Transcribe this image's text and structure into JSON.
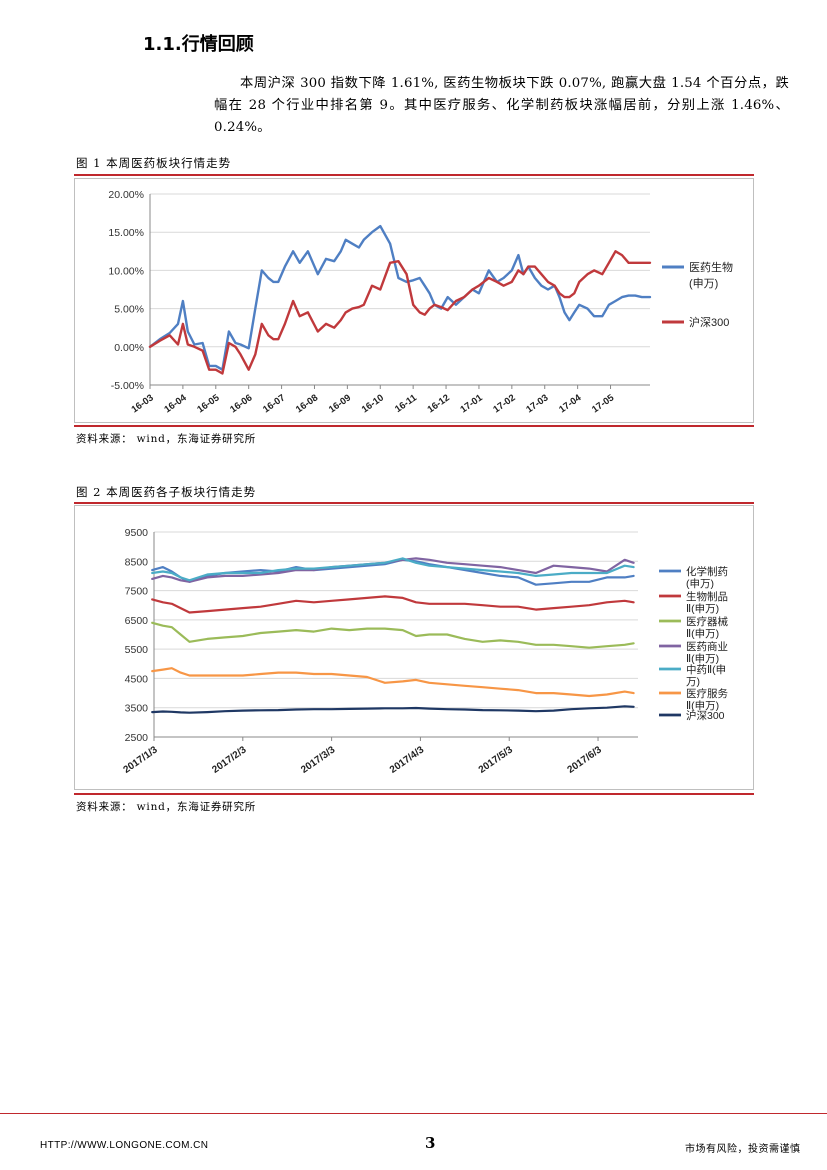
{
  "section_title": "1.1.行情回顾",
  "paragraph": "本周沪深 300 指数下降 1.61%, 医药生物板块下跌 0.07%, 跑赢大盘 1.54 个百分点，跌幅在 28 个行业中排名第 9。其中医疗服务、化学制药板块涨幅居前，分别上涨 1.46%、0.24%。",
  "figure1": {
    "caption": "图 1 本周医药板块行情走势",
    "source": "资料来源：  wind，东海证券研究所"
  },
  "figure2": {
    "caption": "图 2 本周医药各子板块行情走势",
    "source": "资料来源：  wind，东海证券研究所"
  },
  "footer": {
    "url": "HTTP://WWW.LONGONE.COM.CN",
    "page": "3",
    "disclaimer": "市场有风险，投资需谨慎"
  },
  "chart_data": [
    {
      "type": "line",
      "title": "",
      "ylim": [
        -5,
        20
      ],
      "yticks": [
        "-5.00%",
        "0.00%",
        "5.00%",
        "10.00%",
        "15.00%",
        "20.00%"
      ],
      "categories": [
        "16-03",
        "16-04",
        "16-05",
        "16-06",
        "16-07",
        "16-08",
        "16-09",
        "16-10",
        "16-11",
        "16-12",
        "17-01",
        "17-02",
        "17-03",
        "17-04",
        "17-05"
      ],
      "series": [
        {
          "name": "医药生物(申万)",
          "label_lines": [
            "医药生物",
            "(申万)"
          ],
          "color": "#4f7fc3",
          "x": [
            0,
            0.3,
            0.6,
            0.85,
            1.0,
            1.15,
            1.35,
            1.6,
            1.8,
            2.0,
            2.2,
            2.4,
            2.6,
            2.75,
            3.0,
            3.2,
            3.4,
            3.6,
            3.75,
            3.9,
            4.1,
            4.35,
            4.55,
            4.8,
            5.1,
            5.35,
            5.6,
            5.8,
            5.95,
            6.15,
            6.35,
            6.5,
            6.75,
            7.0,
            7.3,
            7.55,
            7.8,
            8.0,
            8.2,
            8.35,
            8.5,
            8.65,
            8.85,
            9.05,
            9.3,
            9.55,
            9.8,
            10.0,
            10.3,
            10.55,
            10.75,
            11.0,
            11.2,
            11.35,
            11.5,
            11.7,
            11.9,
            12.1,
            12.3,
            12.45,
            12.6,
            12.75,
            12.9,
            13.05,
            13.3,
            13.5,
            13.75,
            13.95,
            14.15,
            14.35,
            14.55,
            14.75,
            14.95,
            15.2
          ],
          "values": [
            0.0,
            1.0,
            1.8,
            3.0,
            6.0,
            2.0,
            0.3,
            0.5,
            -2.5,
            -2.5,
            -3.0,
            2.0,
            0.5,
            0.3,
            -0.2,
            5.0,
            10.0,
            9.0,
            8.5,
            8.5,
            10.5,
            12.5,
            11.0,
            12.5,
            9.5,
            11.5,
            11.2,
            12.5,
            14.0,
            13.5,
            13.0,
            14.0,
            15.0,
            15.8,
            13.5,
            9.0,
            8.5,
            8.7,
            9.0,
            8.0,
            7.0,
            5.5,
            5.0,
            6.5,
            5.5,
            6.5,
            7.5,
            7.0,
            10.0,
            8.5,
            9.0,
            10.0,
            12.0,
            9.5,
            10.5,
            9.0,
            8.0,
            7.5,
            8.0,
            6.5,
            4.5,
            3.5,
            4.5,
            5.5,
            5.0,
            4.0,
            4.0,
            5.5,
            6.0,
            6.5,
            6.7,
            6.7,
            6.5,
            6.5
          ]
        },
        {
          "name": "沪深300",
          "label_lines": [
            "沪深300"
          ],
          "color": "#c0393c",
          "x": [
            0,
            0.3,
            0.6,
            0.85,
            1.0,
            1.15,
            1.35,
            1.6,
            1.8,
            2.0,
            2.2,
            2.4,
            2.6,
            2.75,
            3.0,
            3.2,
            3.4,
            3.6,
            3.75,
            3.9,
            4.1,
            4.35,
            4.55,
            4.8,
            5.1,
            5.35,
            5.6,
            5.8,
            5.95,
            6.15,
            6.35,
            6.5,
            6.75,
            7.0,
            7.3,
            7.55,
            7.8,
            8.0,
            8.2,
            8.35,
            8.5,
            8.65,
            8.85,
            9.05,
            9.3,
            9.55,
            9.8,
            10.0,
            10.3,
            10.55,
            10.75,
            11.0,
            11.2,
            11.35,
            11.5,
            11.7,
            11.9,
            12.1,
            12.3,
            12.45,
            12.6,
            12.75,
            12.9,
            13.05,
            13.3,
            13.5,
            13.75,
            13.95,
            14.15,
            14.35,
            14.55,
            14.75,
            14.95,
            15.2
          ],
          "values": [
            0.0,
            0.8,
            1.5,
            0.3,
            3.0,
            0.3,
            0.0,
            -0.5,
            -3.0,
            -3.0,
            -3.5,
            0.5,
            0.0,
            -1.0,
            -3.0,
            -1.0,
            3.0,
            1.5,
            1.0,
            1.0,
            3.0,
            6.0,
            4.0,
            4.5,
            2.0,
            3.0,
            2.5,
            3.5,
            4.5,
            5.0,
            5.2,
            5.5,
            8.0,
            7.5,
            11.0,
            11.2,
            9.5,
            5.5,
            4.5,
            4.2,
            5.0,
            5.5,
            5.2,
            4.8,
            6.0,
            6.5,
            7.5,
            8.0,
            9.0,
            8.5,
            8.0,
            8.5,
            10.0,
            9.5,
            10.5,
            10.5,
            9.5,
            8.5,
            8.0,
            7.0,
            6.5,
            6.5,
            7.0,
            8.5,
            9.5,
            10.0,
            9.5,
            11.0,
            12.5,
            12.0,
            11.0,
            11.0,
            11.0,
            11.0
          ]
        }
      ]
    },
    {
      "type": "line",
      "title": "",
      "ylim": [
        2500,
        9500
      ],
      "yticks": [
        "2500",
        "3500",
        "4500",
        "5500",
        "6500",
        "7500",
        "8500",
        "9500"
      ],
      "categories": [
        "2017/1/3",
        "2017/2/3",
        "2017/3/3",
        "2017/4/3",
        "2017/5/3",
        "2017/6/3"
      ],
      "series": [
        {
          "name": "化学制药(申万)",
          "label_lines": [
            "化学制药",
            "(申万)"
          ],
          "color": "#4f7fc3",
          "x": [
            -0.02,
            0.1,
            0.2,
            0.3,
            0.4,
            0.6,
            0.8,
            1.0,
            1.2,
            1.4,
            1.6,
            1.8,
            2.0,
            2.2,
            2.4,
            2.6,
            2.8,
            2.95,
            3.1,
            3.3,
            3.5,
            3.7,
            3.9,
            4.1,
            4.3,
            4.5,
            4.7,
            4.9,
            5.1,
            5.3,
            5.4
          ],
          "values": [
            8200,
            8300,
            8150,
            7950,
            7800,
            8000,
            8100,
            8150,
            8200,
            8150,
            8300,
            8200,
            8250,
            8300,
            8350,
            8400,
            8550,
            8500,
            8400,
            8300,
            8200,
            8100,
            8000,
            7950,
            7700,
            7750,
            7800,
            7800,
            7950,
            7950,
            8000
          ]
        },
        {
          "name": "生物制品Ⅱ(申万)",
          "label_lines": [
            "生物制品",
            "Ⅱ(申万)"
          ],
          "color": "#c0393c",
          "x": [
            -0.02,
            0.1,
            0.2,
            0.3,
            0.4,
            0.6,
            0.8,
            1.0,
            1.2,
            1.4,
            1.6,
            1.8,
            2.0,
            2.2,
            2.4,
            2.6,
            2.8,
            2.95,
            3.1,
            3.3,
            3.5,
            3.7,
            3.9,
            4.1,
            4.3,
            4.5,
            4.7,
            4.9,
            5.1,
            5.3,
            5.4
          ],
          "values": [
            7200,
            7100,
            7050,
            6900,
            6750,
            6800,
            6850,
            6900,
            6950,
            7050,
            7150,
            7100,
            7150,
            7200,
            7250,
            7300,
            7250,
            7100,
            7050,
            7050,
            7050,
            7000,
            6950,
            6950,
            6850,
            6900,
            6950,
            7000,
            7100,
            7150,
            7100
          ]
        },
        {
          "name": "医疗器械Ⅱ(申万)",
          "label_lines": [
            "医疗器械",
            "Ⅱ(申万)"
          ],
          "color": "#9bbb59",
          "x": [
            -0.02,
            0.1,
            0.2,
            0.3,
            0.4,
            0.6,
            0.8,
            1.0,
            1.2,
            1.4,
            1.6,
            1.8,
            2.0,
            2.2,
            2.4,
            2.6,
            2.8,
            2.95,
            3.1,
            3.3,
            3.5,
            3.7,
            3.9,
            4.1,
            4.3,
            4.5,
            4.7,
            4.9,
            5.1,
            5.3,
            5.4
          ],
          "values": [
            6400,
            6300,
            6250,
            6000,
            5750,
            5850,
            5900,
            5950,
            6050,
            6100,
            6150,
            6100,
            6200,
            6150,
            6200,
            6200,
            6150,
            5950,
            6000,
            6000,
            5850,
            5750,
            5800,
            5750,
            5650,
            5650,
            5600,
            5550,
            5600,
            5650,
            5700
          ]
        },
        {
          "name": "医药商业Ⅱ(申万)",
          "label_lines": [
            "医药商业",
            "Ⅱ(申万)"
          ],
          "color": "#8064a2",
          "x": [
            -0.02,
            0.1,
            0.2,
            0.3,
            0.4,
            0.6,
            0.8,
            1.0,
            1.2,
            1.4,
            1.6,
            1.8,
            2.0,
            2.2,
            2.4,
            2.6,
            2.8,
            2.95,
            3.1,
            3.3,
            3.5,
            3.7,
            3.9,
            4.1,
            4.3,
            4.5,
            4.7,
            4.9,
            5.1,
            5.3,
            5.4
          ],
          "values": [
            7900,
            8000,
            7950,
            7850,
            7800,
            7950,
            8000,
            8000,
            8050,
            8100,
            8200,
            8200,
            8300,
            8350,
            8400,
            8450,
            8550,
            8600,
            8550,
            8450,
            8400,
            8350,
            8300,
            8200,
            8100,
            8350,
            8300,
            8250,
            8150,
            8550,
            8450
          ]
        },
        {
          "name": "中药Ⅱ(申万)",
          "label_lines": [
            "中药Ⅱ(申",
            "万)"
          ],
          "color": "#4bacc6",
          "x": [
            -0.02,
            0.1,
            0.2,
            0.3,
            0.4,
            0.6,
            0.8,
            1.0,
            1.2,
            1.4,
            1.6,
            1.8,
            2.0,
            2.2,
            2.4,
            2.6,
            2.8,
            2.95,
            3.1,
            3.3,
            3.5,
            3.7,
            3.9,
            4.1,
            4.3,
            4.5,
            4.7,
            4.9,
            5.1,
            5.3,
            5.4
          ],
          "values": [
            8100,
            8150,
            8100,
            7950,
            7850,
            8050,
            8100,
            8100,
            8100,
            8200,
            8250,
            8250,
            8300,
            8350,
            8400,
            8450,
            8600,
            8450,
            8350,
            8300,
            8250,
            8200,
            8150,
            8100,
            8000,
            8050,
            8100,
            8100,
            8100,
            8350,
            8300
          ]
        },
        {
          "name": "医疗服务Ⅱ(申万)",
          "label_lines": [
            "医疗服务",
            "Ⅱ(申万)"
          ],
          "color": "#f79646",
          "x": [
            -0.02,
            0.1,
            0.2,
            0.3,
            0.4,
            0.6,
            0.8,
            1.0,
            1.2,
            1.4,
            1.6,
            1.8,
            2.0,
            2.2,
            2.4,
            2.6,
            2.8,
            2.95,
            3.1,
            3.3,
            3.5,
            3.7,
            3.9,
            4.1,
            4.3,
            4.5,
            4.7,
            4.9,
            5.1,
            5.3,
            5.4
          ],
          "values": [
            4750,
            4800,
            4850,
            4700,
            4600,
            4600,
            4600,
            4600,
            4650,
            4700,
            4700,
            4650,
            4650,
            4600,
            4550,
            4350,
            4400,
            4450,
            4350,
            4300,
            4250,
            4200,
            4150,
            4100,
            4000,
            4000,
            3950,
            3900,
            3950,
            4050,
            4000
          ]
        },
        {
          "name": "沪深300",
          "label_lines": [
            "沪深300"
          ],
          "color": "#1f3864",
          "x": [
            -0.02,
            0.1,
            0.2,
            0.3,
            0.4,
            0.6,
            0.8,
            1.0,
            1.2,
            1.4,
            1.6,
            1.8,
            2.0,
            2.2,
            2.4,
            2.6,
            2.8,
            2.95,
            3.1,
            3.3,
            3.5,
            3.7,
            3.9,
            4.1,
            4.3,
            4.5,
            4.7,
            4.9,
            5.1,
            5.3,
            5.4
          ],
          "values": [
            3350,
            3370,
            3360,
            3340,
            3330,
            3350,
            3380,
            3400,
            3410,
            3420,
            3440,
            3450,
            3450,
            3460,
            3470,
            3480,
            3480,
            3490,
            3470,
            3450,
            3440,
            3420,
            3410,
            3400,
            3380,
            3400,
            3450,
            3480,
            3500,
            3550,
            3530
          ]
        }
      ]
    }
  ]
}
